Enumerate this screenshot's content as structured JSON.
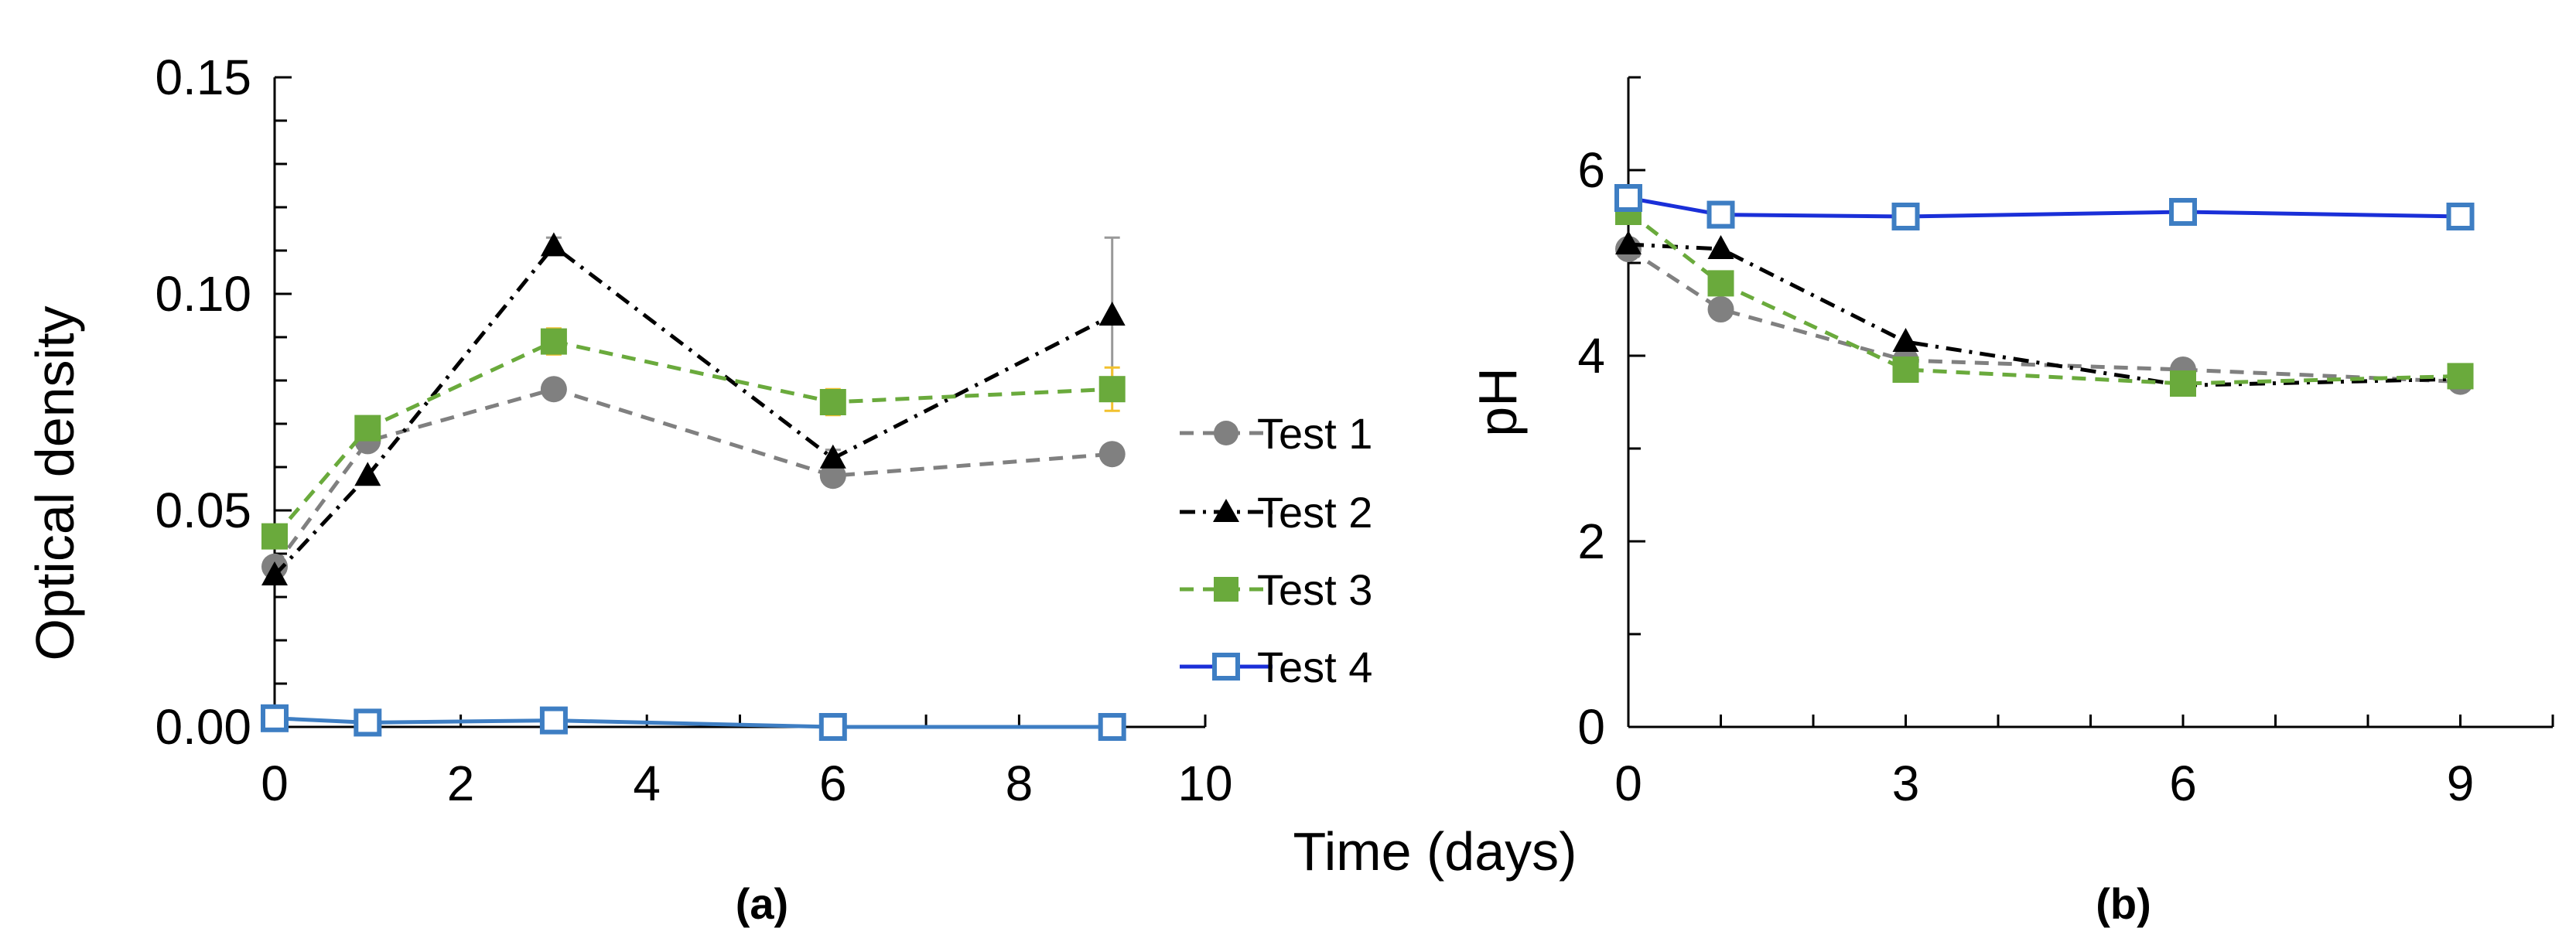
{
  "shared_xlabel": "Time (days)",
  "colors": {
    "test1": "#808080",
    "test2": "#000000",
    "test3": "#6aaa3c",
    "test4_a": "#3e7ec3",
    "test4_b": "#1a2fd8",
    "errorbar": "#f2c12e",
    "axis": "#000000"
  },
  "legend": [
    "Test 1",
    "Test 2",
    "Test 3",
    "Test 4"
  ],
  "chart_data": [
    {
      "id": "a",
      "type": "line",
      "caption": "(a)",
      "ylabel": "Optical density",
      "xlim": [
        0,
        10
      ],
      "ylim": [
        0,
        0.15
      ],
      "xticks": [
        "0",
        "2",
        "4",
        "6",
        "8",
        "10"
      ],
      "yticks": [
        "0.00",
        "0.05",
        "0.10",
        "0.15"
      ],
      "x": [
        0,
        1,
        3,
        6,
        9
      ],
      "series": [
        {
          "name": "Test 1",
          "values": [
            0.037,
            0.066,
            0.078,
            0.058,
            0.063
          ]
        },
        {
          "name": "Test 2",
          "values": [
            0.035,
            0.058,
            0.111,
            0.062,
            0.095
          ],
          "err": [
            0,
            0,
            0.002,
            0.002,
            0.018
          ]
        },
        {
          "name": "Test 3",
          "values": [
            0.044,
            0.069,
            0.089,
            0.075,
            0.078
          ],
          "err": [
            0,
            0,
            0.003,
            0.003,
            0.005
          ]
        },
        {
          "name": "Test 4",
          "values": [
            0.002,
            0.001,
            0.0015,
            0.0,
            0.0
          ]
        }
      ]
    },
    {
      "id": "b",
      "type": "line",
      "caption": "(b)",
      "ylabel": "pH",
      "xlim": [
        0,
        10
      ],
      "ylim": [
        0,
        7
      ],
      "xticks": [
        "0",
        "3",
        "6",
        "9"
      ],
      "yticks": [
        "0",
        "2",
        "4",
        "6"
      ],
      "x": [
        0,
        1,
        3,
        6,
        9
      ],
      "series": [
        {
          "name": "Test 1",
          "values": [
            5.15,
            4.5,
            3.95,
            3.85,
            3.72
          ]
        },
        {
          "name": "Test 2",
          "values": [
            5.2,
            5.15,
            4.15,
            3.68,
            3.75
          ]
        },
        {
          "name": "Test 3",
          "values": [
            5.55,
            4.78,
            3.85,
            3.7,
            3.78
          ]
        },
        {
          "name": "Test 4",
          "values": [
            5.7,
            5.52,
            5.5,
            5.55,
            5.5
          ]
        }
      ]
    }
  ]
}
